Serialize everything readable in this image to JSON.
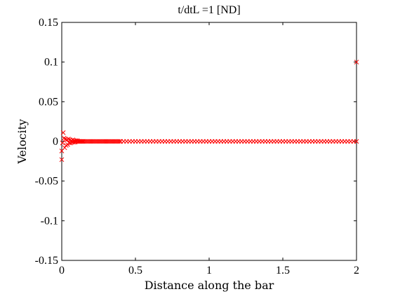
{
  "chart_data": {
    "type": "scatter",
    "title": "t/dtL =1 [ND]",
    "xlabel": "Distance along the bar",
    "ylabel": "Velocity",
    "xlim": [
      0,
      2
    ],
    "ylim": [
      -0.15,
      0.15
    ],
    "x_ticks": [
      0,
      0.5,
      1,
      1.5,
      2
    ],
    "x_tick_labels": [
      "0",
      "0.5",
      "1",
      "1.5",
      "2"
    ],
    "y_ticks": [
      -0.15,
      -0.1,
      -0.05,
      0,
      0.05,
      0.1,
      0.15
    ],
    "y_tick_labels": [
      "-0.15",
      "-0.1",
      "-0.05",
      "0",
      "0.05",
      "0.1",
      "0.15"
    ],
    "grid": false,
    "marker": "x",
    "colors": {
      "marker": "#ff0000",
      "axes": "#000000"
    },
    "series": [
      {
        "points": [
          [
            0.0,
            -0.023
          ],
          [
            0.0,
            -0.012
          ],
          [
            0.005,
            -0.002
          ],
          [
            0.01,
            0.011
          ],
          [
            0.015,
            0.004
          ],
          [
            0.02,
            -0.008
          ],
          [
            0.025,
            0.003
          ],
          [
            0.03,
            -0.005
          ],
          [
            0.035,
            0.002
          ],
          [
            0.04,
            -0.004
          ],
          [
            0.045,
            0.003
          ],
          [
            0.05,
            -0.002
          ],
          [
            0.055,
            0.002
          ],
          [
            0.06,
            -0.002
          ],
          [
            0.065,
            0.001
          ],
          [
            0.07,
            -0.001
          ],
          [
            0.075,
            0.002
          ],
          [
            0.08,
            -0.001
          ],
          [
            0.085,
            0.001
          ],
          [
            0.09,
            -0.001
          ],
          [
            0.095,
            0.001
          ],
          [
            0.1,
            0.0
          ],
          [
            0.105,
            0.001
          ],
          [
            0.11,
            0.0
          ],
          [
            0.115,
            0.0
          ],
          [
            0.12,
            0.0
          ],
          [
            0.125,
            0.0
          ],
          [
            0.13,
            0.0
          ],
          [
            0.135,
            0.0
          ],
          [
            0.14,
            0.0
          ],
          [
            0.145,
            0.0
          ],
          [
            0.15,
            0.0
          ],
          [
            0.16,
            0.0
          ],
          [
            0.17,
            0.0
          ],
          [
            0.18,
            0.0
          ],
          [
            0.19,
            0.0
          ],
          [
            0.2,
            0.0
          ],
          [
            0.21,
            0.0
          ],
          [
            0.22,
            0.0
          ],
          [
            0.23,
            0.0
          ],
          [
            0.24,
            0.0
          ],
          [
            0.25,
            0.0
          ],
          [
            0.26,
            0.0
          ],
          [
            0.27,
            0.0
          ],
          [
            0.28,
            0.0
          ],
          [
            0.29,
            0.0
          ],
          [
            0.3,
            0.0
          ],
          [
            0.31,
            0.0
          ],
          [
            0.32,
            0.0
          ],
          [
            0.33,
            0.0
          ],
          [
            0.34,
            0.0
          ],
          [
            0.35,
            0.0
          ],
          [
            0.36,
            0.0
          ],
          [
            0.37,
            0.0
          ],
          [
            0.38,
            0.0
          ],
          [
            0.39,
            0.0
          ],
          [
            0.4,
            0.0
          ],
          [
            0.42,
            0.0
          ],
          [
            0.44,
            0.0
          ],
          [
            0.46,
            0.0
          ],
          [
            0.48,
            0.0
          ],
          [
            0.5,
            0.0
          ],
          [
            0.52,
            0.0
          ],
          [
            0.54,
            0.0
          ],
          [
            0.56,
            0.0
          ],
          [
            0.58,
            0.0
          ],
          [
            0.6,
            0.0
          ],
          [
            0.62,
            0.0
          ],
          [
            0.64,
            0.0
          ],
          [
            0.66,
            0.0
          ],
          [
            0.68,
            0.0
          ],
          [
            0.7,
            0.0
          ],
          [
            0.72,
            0.0
          ],
          [
            0.74,
            0.0
          ],
          [
            0.76,
            0.0
          ],
          [
            0.78,
            0.0
          ],
          [
            0.8,
            0.0
          ],
          [
            0.82,
            0.0
          ],
          [
            0.84,
            0.0
          ],
          [
            0.86,
            0.0
          ],
          [
            0.88,
            0.0
          ],
          [
            0.9,
            0.0
          ],
          [
            0.92,
            0.0
          ],
          [
            0.94,
            0.0
          ],
          [
            0.96,
            0.0
          ],
          [
            0.98,
            0.0
          ],
          [
            1.0,
            0.0
          ],
          [
            1.02,
            0.0
          ],
          [
            1.04,
            0.0
          ],
          [
            1.06,
            0.0
          ],
          [
            1.08,
            0.0
          ],
          [
            1.1,
            0.0
          ],
          [
            1.12,
            0.0
          ],
          [
            1.14,
            0.0
          ],
          [
            1.16,
            0.0
          ],
          [
            1.18,
            0.0
          ],
          [
            1.2,
            0.0
          ],
          [
            1.22,
            0.0
          ],
          [
            1.24,
            0.0
          ],
          [
            1.26,
            0.0
          ],
          [
            1.28,
            0.0
          ],
          [
            1.3,
            0.0
          ],
          [
            1.32,
            0.0
          ],
          [
            1.34,
            0.0
          ],
          [
            1.36,
            0.0
          ],
          [
            1.38,
            0.0
          ],
          [
            1.4,
            0.0
          ],
          [
            1.42,
            0.0
          ],
          [
            1.44,
            0.0
          ],
          [
            1.46,
            0.0
          ],
          [
            1.48,
            0.0
          ],
          [
            1.5,
            0.0
          ],
          [
            1.52,
            0.0
          ],
          [
            1.54,
            0.0
          ],
          [
            1.56,
            0.0
          ],
          [
            1.58,
            0.0
          ],
          [
            1.6,
            0.0
          ],
          [
            1.62,
            0.0
          ],
          [
            1.64,
            0.0
          ],
          [
            1.66,
            0.0
          ],
          [
            1.68,
            0.0
          ],
          [
            1.7,
            0.0
          ],
          [
            1.72,
            0.0
          ],
          [
            1.74,
            0.0
          ],
          [
            1.76,
            0.0
          ],
          [
            1.78,
            0.0
          ],
          [
            1.8,
            0.0
          ],
          [
            1.82,
            0.0
          ],
          [
            1.84,
            0.0
          ],
          [
            1.86,
            0.0
          ],
          [
            1.88,
            0.0
          ],
          [
            1.9,
            0.0
          ],
          [
            1.92,
            0.0
          ],
          [
            1.94,
            0.0
          ],
          [
            1.96,
            0.0
          ],
          [
            1.98,
            0.0
          ],
          [
            2.0,
            0.0
          ],
          [
            2.0,
            0.1
          ]
        ]
      }
    ]
  }
}
